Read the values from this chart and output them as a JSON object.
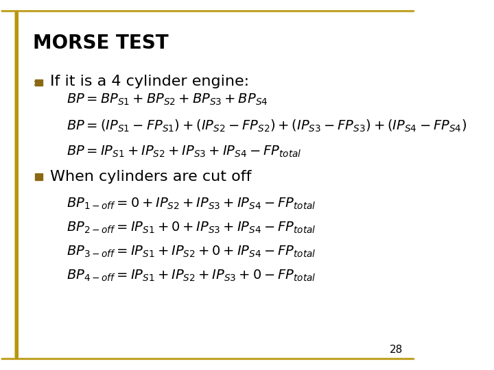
{
  "title": "MORSE TEST",
  "title_fontsize": 20,
  "background_color": "#ffffff",
  "border_color": "#b8960c",
  "bullet_color": "#8B6914",
  "page_number": "28",
  "bullet1_text": "If it is a 4 cylinder engine:",
  "bullet1_fontsize": 16,
  "bullet2_text": "When cylinders are cut off",
  "bullet2_fontsize": 16,
  "eq1": "$BP = BP_{S1} + BP_{S2} + BP_{S3} + BP_{S4}$",
  "eq2": "$BP = (IP_{S1} - FP_{S1}) + (IP_{S2} - FP_{S2}) + (IP_{S3} - FP_{S3}) + (IP_{S4} - FP_{S4})$",
  "eq3": "$BP = IP_{S1} + IP_{S2} + IP_{S3} + IP_{S4} - FP_{total}$",
  "eq4": "$BP_{1-off} = 0 + IP_{S2} + IP_{S3} + IP_{S4} - FP_{total}$",
  "eq5": "$BP_{2-off} = IP_{S1} + 0 + IP_{S3} + IP_{S4} - FP_{total}$",
  "eq6": "$BP_{3-off} = IP_{S1} + IP_{S2} + 0 + IP_{S4} - FP_{total}$",
  "eq7": "$BP_{4-off} = IP_{S1} + IP_{S2} + IP_{S3} + 0 - FP_{total}$",
  "eq_fontsize": 14
}
